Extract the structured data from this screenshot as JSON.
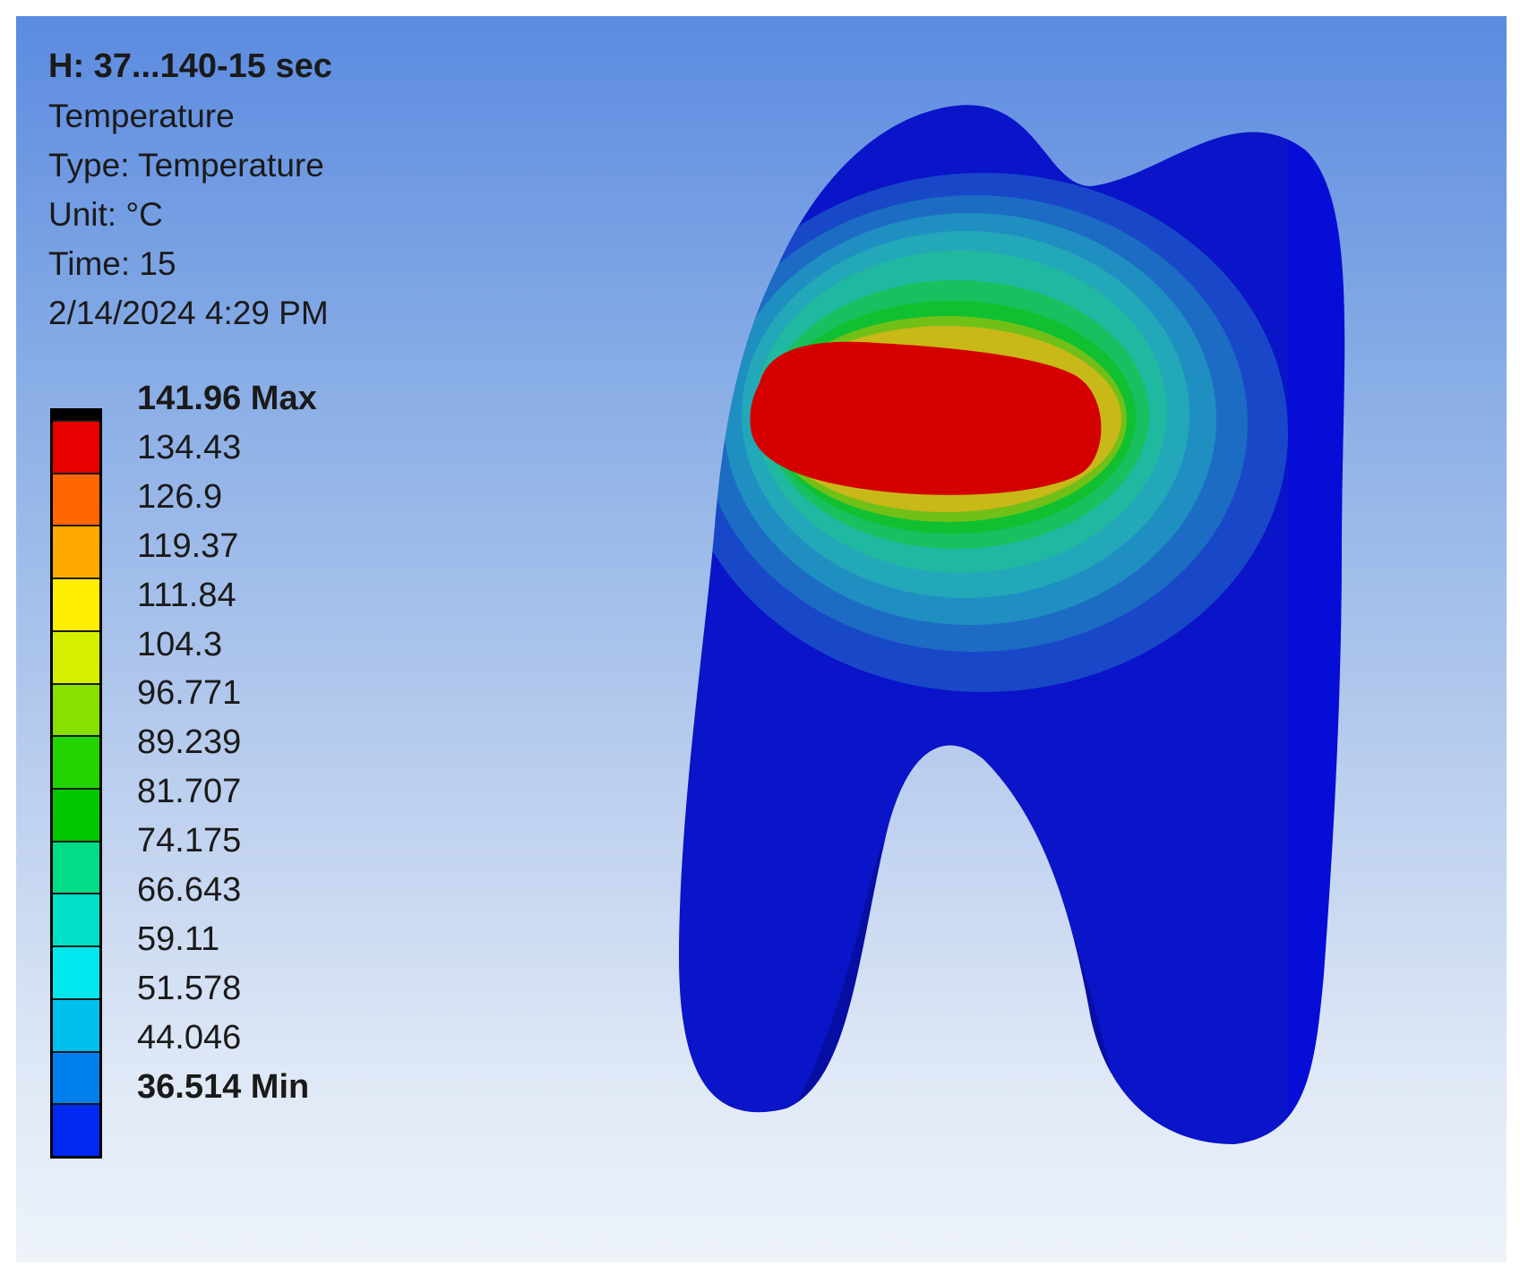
{
  "header": {
    "title": "H: 37...140-15 sec",
    "result_name": "Temperature",
    "type_line": "Type: Temperature",
    "unit_line": "Unit: °C",
    "time_line": "Time: 15",
    "date_line": "2/14/2024 4:29 PM"
  },
  "legend": {
    "labels": [
      "141.96 Max",
      "134.43",
      "126.9",
      "119.37",
      "111.84",
      "104.3",
      "96.771",
      "89.239",
      "81.707",
      "74.175",
      "66.643",
      "59.11",
      "51.578",
      "44.046",
      "36.514 Min"
    ],
    "colors": [
      "#e60000",
      "#ff6600",
      "#ffaa00",
      "#ffee00",
      "#d4f000",
      "#88e000",
      "#22d400",
      "#00c800",
      "#00dc88",
      "#00e0c8",
      "#00e8ee",
      "#00c0ee",
      "#0080ee",
      "#0028f0"
    ]
  },
  "colors": {
    "background_top": "#5b8be0",
    "background_bottom": "#eef3fa",
    "model_base": "#0a14c8",
    "hot_zone": "#d40000"
  }
}
